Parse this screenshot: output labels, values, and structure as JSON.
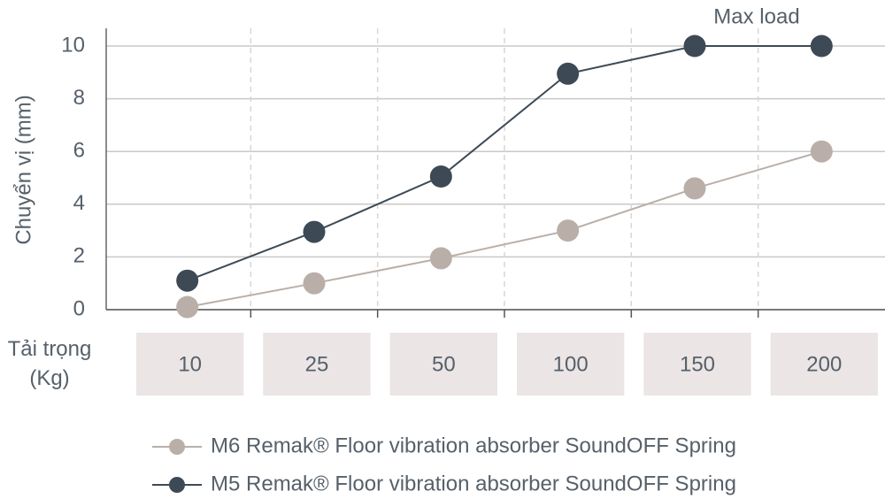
{
  "chart_data": {
    "type": "line",
    "y_label": "Chuyển vị (mm)",
    "x_label": "Tải trọng (Kg)",
    "annotation": "Max load",
    "categories": [
      "10",
      "25",
      "50",
      "100",
      "150",
      "200"
    ],
    "series": [
      {
        "name": "M6 Remak® Floor vibration absorber SoundOFF Spring",
        "color": "#b9afa8",
        "values": [
          0.1,
          1,
          1.95,
          3,
          4.6,
          6
        ]
      },
      {
        "name": "M5 Remak® Floor vibration absorber SoundOFF Spring",
        "color": "#3d4a56",
        "values": [
          1.1,
          2.95,
          5.05,
          8.95,
          10,
          10
        ]
      }
    ],
    "ylim": [
      0,
      10
    ],
    "yticks": [
      0,
      2,
      4,
      6,
      8,
      10
    ],
    "grid": true
  }
}
